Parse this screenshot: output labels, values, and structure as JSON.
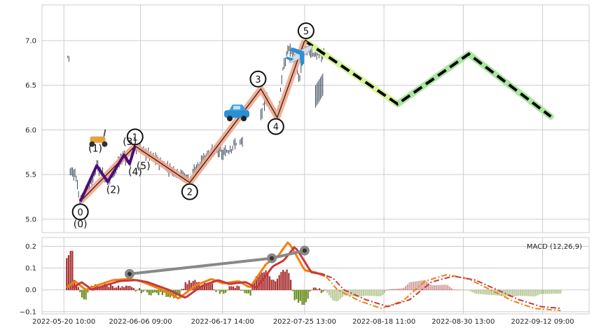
{
  "colors": {
    "grid": "#cccccc",
    "panel_border": "#cccccc",
    "candle": "#3d4b5c",
    "minor_wave": "#4b0f78",
    "wave_highlight": "#f4a58a",
    "wave_line": "#222222",
    "projection_dash": "#000000",
    "projection_glow_1": "#d9f59a",
    "projection_glow_2": "#a8e6a0",
    "macd": "#f08010",
    "signal": "#c8393b",
    "hist_pos": "#a83232",
    "hist_neg": "#6a8f1e",
    "trendline": "#888888"
  },
  "chart_data": [
    {
      "type": "candlestick",
      "panel": "price",
      "ylim": [
        4.85,
        7.4
      ],
      "yticks": [
        "5.0",
        "5.5",
        "6.0",
        "6.5",
        "7.0"
      ],
      "grid": true,
      "xtick_labels": [
        "2022-05-20 10:00",
        "2022-06-06 09:00",
        "2022-06-17 14:00",
        "2022-07-25 13:00",
        "2022-08-18 11:00",
        "2022-08-30 13:00",
        "2022-09-12 09:00"
      ],
      "elliott_wave_main": {
        "points": [
          [
            0.07,
            5.2
          ],
          [
            0.17,
            5.82
          ],
          [
            0.27,
            5.41
          ],
          [
            0.4,
            6.46
          ],
          [
            0.43,
            6.14
          ],
          [
            0.48,
            7.0
          ]
        ],
        "labels": [
          "0",
          "1",
          "2",
          "3",
          "4",
          "5"
        ]
      },
      "elliott_wave_minor": {
        "points": [
          [
            0.07,
            5.2
          ],
          [
            0.1,
            5.6
          ],
          [
            0.12,
            5.42
          ],
          [
            0.15,
            5.72
          ],
          [
            0.16,
            5.62
          ],
          [
            0.17,
            5.82
          ]
        ],
        "labels": [
          "(0)",
          "(1)",
          "(2)",
          "(3)",
          "(4)",
          "(5)"
        ]
      },
      "projection": {
        "points": [
          [
            0.48,
            7.0
          ],
          [
            0.65,
            6.29
          ],
          [
            0.78,
            6.85
          ],
          [
            0.93,
            6.15
          ]
        ]
      },
      "icons": [
        "scooter-icon",
        "car-icon",
        "airplane-icon"
      ]
    },
    {
      "type": "line",
      "panel": "macd",
      "legend": "MACD (12,26,9)",
      "legend_position": "top-right",
      "ylim": [
        -0.11,
        0.24
      ],
      "yticks": [
        "−0.1",
        "0.0",
        "0.1",
        "0.2"
      ],
      "grid": true,
      "divergence_points": [
        [
          0.16,
          0.073
        ],
        [
          0.42,
          0.145
        ],
        [
          0.48,
          0.18
        ]
      ]
    }
  ]
}
